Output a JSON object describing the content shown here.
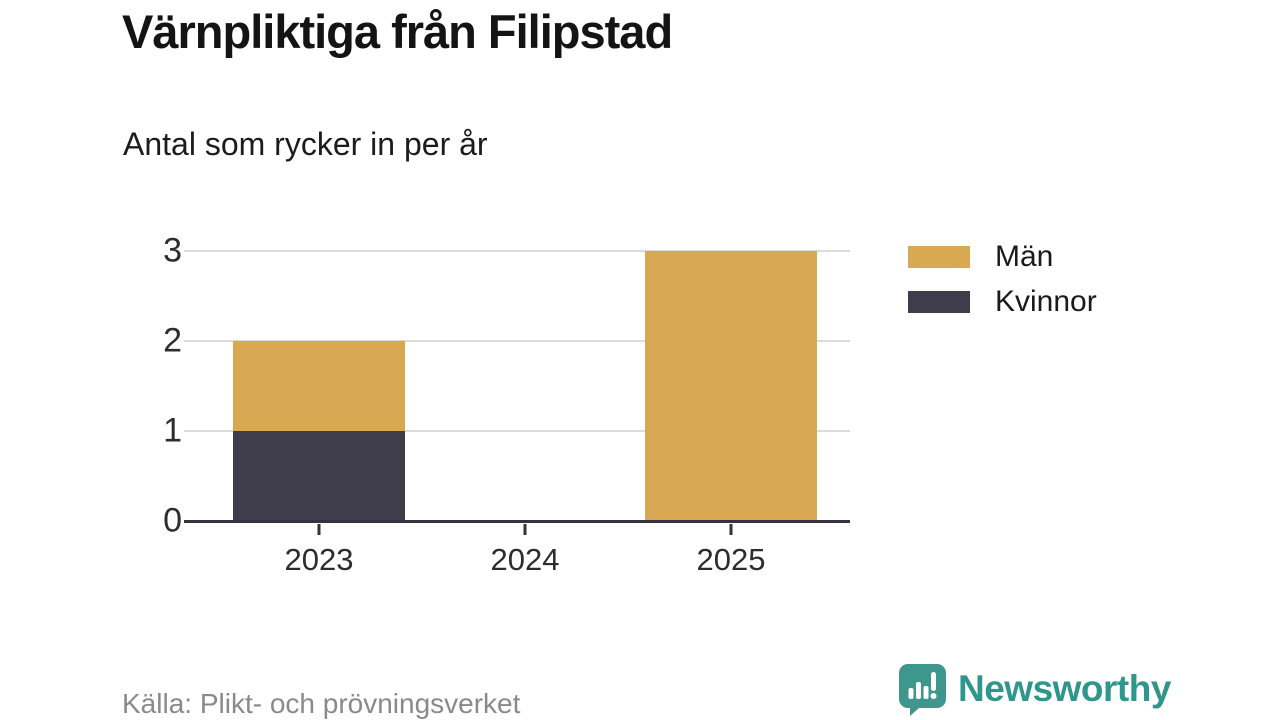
{
  "header": {
    "title": "Värnpliktiga från Filipstad",
    "subtitle": "Antal som rycker in per år"
  },
  "chart_data": {
    "type": "bar",
    "stacked": true,
    "title": "Värnpliktiga från Filipstad",
    "subtitle": "Antal som rycker in per år",
    "categories": [
      "2023",
      "2024",
      "2025"
    ],
    "series": [
      {
        "name": "Män",
        "color": "#D9A853",
        "values": [
          1,
          0,
          3
        ]
      },
      {
        "name": "Kvinnor",
        "color": "#3F3C4B",
        "values": [
          1,
          0,
          0
        ]
      }
    ],
    "xlabel": "",
    "ylabel": "",
    "ylim": [
      0,
      3
    ],
    "yticks": [
      0,
      1,
      2,
      3
    ],
    "grid": true,
    "legend_position": "right",
    "axis_color": "#34323D",
    "grid_color": "#DCDCDC"
  },
  "footer": {
    "source": "Källa: Plikt- och prövningsverket",
    "brand": "Newsworthy",
    "brand_color": "#2F968C",
    "brand_icon": "bar-chart-speech-bubble-icon"
  }
}
